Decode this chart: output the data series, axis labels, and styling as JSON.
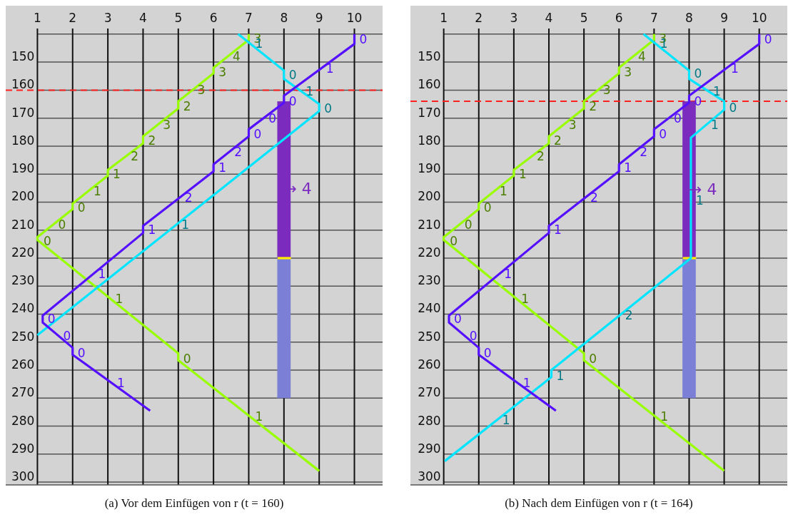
{
  "chart_data": [
    {
      "type": "line",
      "title": "(a) Vor dem Einfügen von r (t = 160)",
      "xlim": [
        0.1,
        10.8
      ],
      "ylim": [
        301,
        138
      ],
      "xticks": [
        1,
        2,
        3,
        4,
        5,
        6,
        7,
        8,
        9,
        10
      ],
      "yticks": [
        {
          "value": 140,
          "label": null
        },
        150,
        160,
        170,
        180,
        190,
        200,
        210,
        220,
        230,
        240,
        250,
        260,
        270,
        280,
        290,
        300
      ],
      "grid": true,
      "ref_lines": [
        {
          "axis": "y",
          "value": 160,
          "color": "#ff2020",
          "line_style": "dashed"
        }
      ],
      "series": [
        {
          "type": "bar",
          "x": [
            8
          ],
          "base": [
            164
          ],
          "values": [
            56
          ],
          "color": "#7b2cbf"
        },
        {
          "type": "bar",
          "x": [
            8
          ],
          "base": [
            220
          ],
          "values": [
            50
          ],
          "color": "#7b80d6"
        },
        {
          "x": [
            7.82,
            8.2
          ],
          "values": [
            220,
            220
          ],
          "color": "#ffee00"
        },
        {
          "x": [
            7,
            7,
            6,
            6,
            5,
            5,
            4,
            4,
            3,
            3,
            2,
            2,
            1,
            1,
            5,
            5,
            9
          ],
          "values": [
            140,
            142,
            152,
            154,
            164,
            166.5,
            176.5,
            179,
            188.5,
            190.5,
            200.5,
            202.5,
            212.5,
            213.5,
            254,
            256.5,
            296
          ],
          "color": "#99ff00"
        },
        {
          "x": [
            6.7,
            8,
            8,
            9,
            9,
            1
          ],
          "values": [
            140,
            153,
            156,
            165,
            167.5,
            247.5
          ],
          "color": "#00e5ff"
        },
        {
          "x": [
            10,
            10,
            8,
            8,
            7,
            7,
            6,
            6,
            4,
            4,
            1.15,
            1.15,
            2,
            2,
            4.2
          ],
          "values": [
            140,
            143.5,
            162,
            164.5,
            174,
            176.5,
            186.5,
            189,
            208.5,
            211,
            240.5,
            243,
            252,
            254.5,
            274.5
          ],
          "color": "#5511ff"
        }
      ],
      "annotations": [
        {
          "text": "3",
          "x": 7,
          "y": 141.5
        },
        {
          "text": "4",
          "x": 6.4,
          "y": 148
        },
        {
          "text": "3",
          "x": 6,
          "y": 153.6
        },
        {
          "text": "3",
          "x": 5.4,
          "y": 160
        },
        {
          "text": "2",
          "x": 5,
          "y": 165.7
        },
        {
          "text": "3",
          "x": 4.42,
          "y": 172.3
        },
        {
          "text": "2",
          "x": 4,
          "y": 178
        },
        {
          "text": "2",
          "x": 3.51,
          "y": 183.7
        },
        {
          "text": "1",
          "x": 3,
          "y": 190
        },
        {
          "text": "1",
          "x": 2.45,
          "y": 196
        },
        {
          "text": "0",
          "x": 2,
          "y": 202
        },
        {
          "text": "0",
          "x": 1.45,
          "y": 208
        },
        {
          "text": "0",
          "x": 1.03,
          "y": 213.8
        },
        {
          "text": "1",
          "x": 3.07,
          "y": 234.5
        },
        {
          "text": "0",
          "x": 5,
          "y": 255.8
        },
        {
          "text": "1",
          "x": 7.04,
          "y": 276.6
        },
        {
          "text": "1",
          "x": 7.04,
          "y": 143.4
        },
        {
          "text": "0",
          "x": 8,
          "y": 154.5
        },
        {
          "text": "1",
          "x": 8.48,
          "y": 160.3
        },
        {
          "text": "0",
          "x": 9,
          "y": 166.5
        },
        {
          "text": "1",
          "x": 4.95,
          "y": 208
        },
        {
          "text": "0",
          "x": 10,
          "y": 141.7
        },
        {
          "text": "1",
          "x": 9.05,
          "y": 152.3
        },
        {
          "text": "0",
          "x": 8,
          "y": 163.9
        },
        {
          "text": "0",
          "x": 7.42,
          "y": 170
        },
        {
          "text": "0",
          "x": 7,
          "y": 175.8
        },
        {
          "text": "2",
          "x": 6.45,
          "y": 182
        },
        {
          "text": "1",
          "x": 6,
          "y": 187.7
        },
        {
          "text": "2",
          "x": 5.04,
          "y": 198.4
        },
        {
          "text": "1",
          "x": 4,
          "y": 209.8
        },
        {
          "text": "1",
          "x": 2.58,
          "y": 225.7
        },
        {
          "text": "0",
          "x": 1.15,
          "y": 241.6
        },
        {
          "text": "0",
          "x": 1.59,
          "y": 247.7
        },
        {
          "text": "0",
          "x": 2,
          "y": 254
        },
        {
          "text": "1",
          "x": 3.12,
          "y": 264.7
        },
        {
          "text": "→ 4",
          "x": 7.85,
          "y": 195.3
        }
      ]
    },
    {
      "type": "line",
      "title": "(b) Nach dem Einfügen von r (t = 164)",
      "xlim": [
        0.05,
        10.8
      ],
      "ylim": [
        301,
        138
      ],
      "xticks": [
        1,
        2,
        3,
        4,
        5,
        6,
        7,
        8,
        9,
        10
      ],
      "yticks": [
        {
          "value": 140,
          "label": null
        },
        150,
        160,
        170,
        180,
        190,
        200,
        210,
        220,
        230,
        240,
        250,
        260,
        270,
        280,
        290,
        300
      ],
      "grid": true,
      "ref_lines": [
        {
          "axis": "y",
          "value": 164,
          "color": "#ff2020",
          "line_style": "dashed"
        }
      ],
      "series": [
        {
          "type": "bar",
          "x": [
            8
          ],
          "base": [
            164
          ],
          "values": [
            56
          ],
          "color": "#7b2cbf"
        },
        {
          "type": "bar",
          "x": [
            8
          ],
          "base": [
            220
          ],
          "values": [
            50
          ],
          "color": "#7b80d6"
        },
        {
          "x": [
            7.82,
            8.2
          ],
          "values": [
            220,
            220
          ],
          "color": "#ffee00"
        },
        {
          "x": [
            7,
            7,
            6,
            6,
            5,
            5,
            4,
            4,
            3,
            3,
            2,
            2,
            1,
            1,
            5,
            5,
            9
          ],
          "values": [
            140,
            142,
            152,
            154,
            164,
            166.5,
            176.5,
            179,
            188.5,
            190.5,
            200.5,
            202.5,
            212.5,
            213.5,
            254,
            256.5,
            296
          ],
          "color": "#99ff00"
        },
        {
          "x": [
            6.7,
            8,
            8,
            9,
            9,
            8.05,
            8.05,
            4.07,
            4.07,
            1.03
          ],
          "values": [
            140,
            153,
            156,
            164,
            167,
            177,
            220,
            260,
            262.5,
            292.5
          ],
          "color": "#00e5ff"
        },
        {
          "x": [
            10,
            10,
            8,
            8,
            7,
            7,
            6,
            6,
            4,
            4,
            1.15,
            1.15,
            2,
            2,
            4.2
          ],
          "values": [
            140,
            143.5,
            162,
            164.5,
            174,
            176.5,
            186.5,
            189,
            208.5,
            211,
            240.5,
            243,
            252,
            254.5,
            274.5
          ],
          "color": "#5511ff"
        }
      ],
      "annotations": [
        {
          "text": "3",
          "x": 7,
          "y": 141.5
        },
        {
          "text": "4",
          "x": 6.4,
          "y": 148
        },
        {
          "text": "3",
          "x": 6,
          "y": 153.6
        },
        {
          "text": "3",
          "x": 5.4,
          "y": 160
        },
        {
          "text": "2",
          "x": 5,
          "y": 165.7
        },
        {
          "text": "3",
          "x": 4.42,
          "y": 172.3
        },
        {
          "text": "2",
          "x": 4,
          "y": 178
        },
        {
          "text": "2",
          "x": 3.51,
          "y": 183.7
        },
        {
          "text": "1",
          "x": 3,
          "y": 190
        },
        {
          "text": "1",
          "x": 2.45,
          "y": 196
        },
        {
          "text": "0",
          "x": 2,
          "y": 202
        },
        {
          "text": "0",
          "x": 1.45,
          "y": 208
        },
        {
          "text": "0",
          "x": 1.03,
          "y": 213.8
        },
        {
          "text": "1",
          "x": 3.07,
          "y": 234.5
        },
        {
          "text": "0",
          "x": 5,
          "y": 255.8
        },
        {
          "text": "1",
          "x": 7.04,
          "y": 276.6
        },
        {
          "text": "1",
          "x": 7.03,
          "y": 143.3
        },
        {
          "text": "0",
          "x": 8,
          "y": 154
        },
        {
          "text": "1",
          "x": 8.54,
          "y": 160.3
        },
        {
          "text": "0",
          "x": 9,
          "y": 166.2
        },
        {
          "text": "1",
          "x": 8.48,
          "y": 172.5
        },
        {
          "text": "1",
          "x": 8.05,
          "y": 199.5
        },
        {
          "text": "2",
          "x": 6.03,
          "y": 240.3
        },
        {
          "text": "1",
          "x": 4.07,
          "y": 262
        },
        {
          "text": "1",
          "x": 2.53,
          "y": 277.7
        },
        {
          "text": "0",
          "x": 10,
          "y": 141.7
        },
        {
          "text": "1",
          "x": 9.05,
          "y": 152.3
        },
        {
          "text": "0",
          "x": 8,
          "y": 163.9
        },
        {
          "text": "0",
          "x": 7.42,
          "y": 170
        },
        {
          "text": "0",
          "x": 7,
          "y": 175.8
        },
        {
          "text": "2",
          "x": 6.45,
          "y": 182
        },
        {
          "text": "1",
          "x": 6,
          "y": 187.7
        },
        {
          "text": "2",
          "x": 5.04,
          "y": 198.4
        },
        {
          "text": "1",
          "x": 4,
          "y": 209.8
        },
        {
          "text": "1",
          "x": 2.58,
          "y": 225.7
        },
        {
          "text": "0",
          "x": 1.15,
          "y": 241.6
        },
        {
          "text": "0",
          "x": 1.59,
          "y": 247.7
        },
        {
          "text": "0",
          "x": 2,
          "y": 254
        },
        {
          "text": "1",
          "x": 3.12,
          "y": 264.7
        },
        {
          "text": "→ 4",
          "x": 7.85,
          "y": 195.4
        }
      ]
    }
  ]
}
